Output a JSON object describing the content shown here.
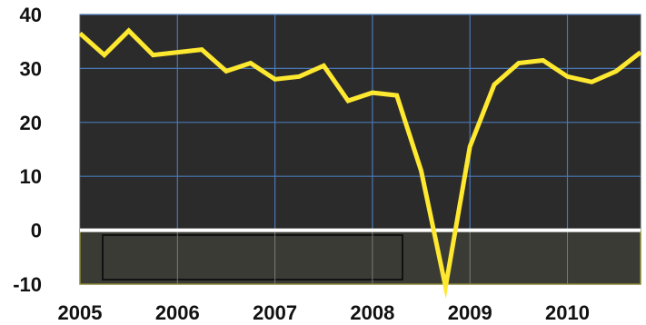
{
  "chart_data": {
    "type": "line",
    "title": "",
    "xlabel": "",
    "ylabel": "",
    "xlim": [
      2005,
      2010.75
    ],
    "ylim": [
      -10,
      40
    ],
    "x_ticks": [
      2005,
      2006,
      2007,
      2008,
      2009,
      2010
    ],
    "x_tick_labels": [
      "2005",
      "2006",
      "2007",
      "2008",
      "2009",
      "2010"
    ],
    "y_ticks": [
      -10,
      0,
      10,
      20,
      30,
      40
    ],
    "y_tick_labels": [
      "-10",
      "0",
      "10",
      "20",
      "30",
      "40"
    ],
    "grid": true,
    "legend": "none",
    "reference_line_y": 0,
    "series": [
      {
        "x": [
          2005.0,
          2005.25,
          2005.5,
          2005.75,
          2006.0,
          2006.25,
          2006.5,
          2006.75,
          2007.0,
          2007.25,
          2007.5,
          2007.75,
          2008.0,
          2008.25,
          2008.5,
          2008.75,
          2009.0,
          2009.25,
          2009.5,
          2009.75,
          2010.0,
          2010.25,
          2010.5,
          2010.75
        ],
        "values": [
          36.5,
          32.5,
          37.0,
          32.5,
          33.0,
          33.5,
          29.5,
          31.0,
          28.0,
          28.5,
          30.5,
          24.0,
          25.5,
          25.0,
          11.0,
          -10.5,
          15.5,
          27.0,
          31.0,
          31.5,
          28.5,
          27.5,
          29.5,
          33.0
        ]
      }
    ],
    "colors": {
      "plot_background": "#2b2b2b",
      "grid_blue": "#4a78b8",
      "grid_light": "#7a7a7a",
      "negative_region": "#3b3b35",
      "negative_border": "#8a8a3a",
      "zero_line": "#ffffff",
      "line": "#ffe830",
      "tick_text": "#111111"
    }
  }
}
